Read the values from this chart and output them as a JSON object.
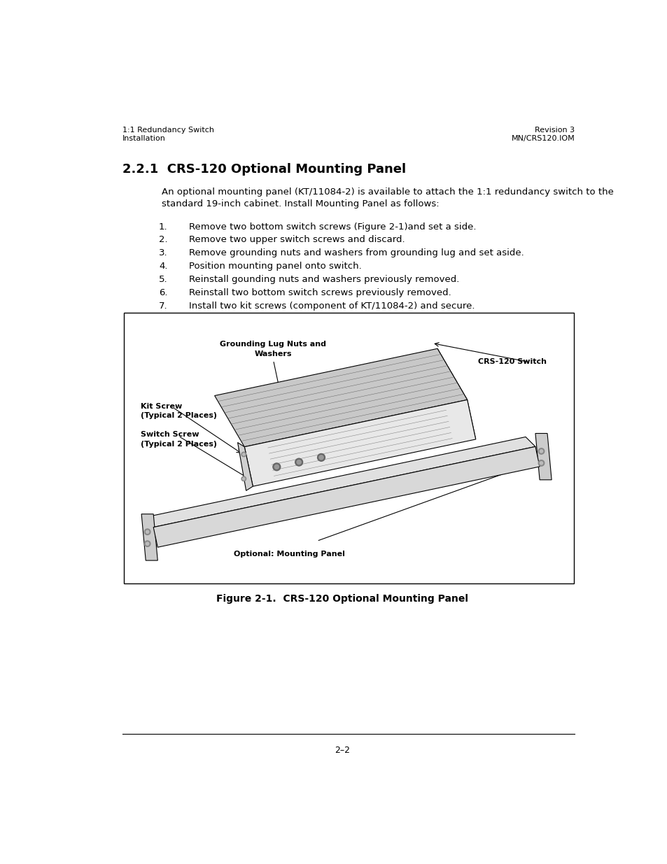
{
  "page_width": 9.54,
  "page_height": 12.35,
  "bg_color": "#ffffff",
  "header_left_line1": "1:1 Redundancy Switch",
  "header_left_line2": "Installation",
  "header_right_line1": "Revision 3",
  "header_right_line2": "MN/CRS120.IOM",
  "section_title": "2.2.1  CRS-120 Optional Mounting Panel",
  "intro_line1": "An optional mounting panel (KT/11084-2) is available to attach the 1:1 redundancy switch to the",
  "intro_line2": "standard 19-inch cabinet. Install Mounting Panel as follows:",
  "list_items": [
    "Remove two bottom switch screws (Figure 2-1)and set a side.",
    "Remove two upper switch screws and discard.",
    "Remove grounding nuts and washers from grounding lug and set aside.",
    "Position mounting panel onto switch.",
    "Reinstall gounding nuts and washers previously removed.",
    "Reinstall two bottom switch screws previously removed.",
    "Install two kit screws (component of KT/11084-2) and secure."
  ],
  "figure_caption": "Figure 2-1.  CRS-120 Optional Mounting Panel",
  "page_number": "2–2",
  "figure_labels": {
    "grounding_lug_line1": "Grounding Lug Nuts and",
    "grounding_lug_line2": "Washers",
    "crs120_switch": "CRS-120 Switch",
    "kit_screw_line1": "Kit Screw",
    "kit_screw_line2": "(Typical 2 Places)",
    "switch_screw_line1": "Switch Screw",
    "switch_screw_line2": "(Typical 2 Places)",
    "mounting_panel": "Optional: Mounting Panel"
  },
  "header_fontsize": 8,
  "section_fontsize": 13,
  "body_fontsize": 9.5,
  "label_fontsize": 8,
  "caption_fontsize": 10,
  "page_num_fontsize": 9
}
